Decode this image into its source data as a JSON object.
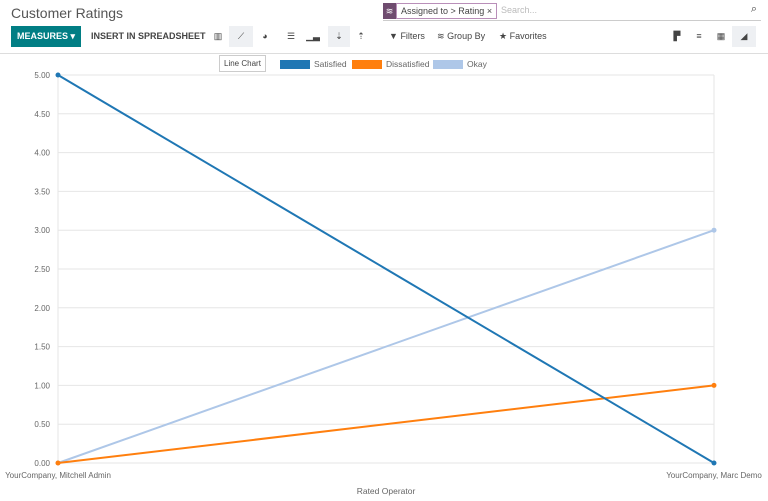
{
  "title": "Customer Ratings",
  "search": {
    "facet": "Assigned to > Rating",
    "facet_icon": "layers-icon",
    "placeholder": "Search..."
  },
  "toolbar": {
    "measures": "MEASURES",
    "insert": "INSERT IN SPREADSHEET",
    "filters": "Filters",
    "group_by": "Group By",
    "favorites": "Favorites",
    "tooltip": "Line Chart"
  },
  "chart_data": {
    "type": "line",
    "categories": [
      "YourCompany, Mitchell Admin",
      "YourCompany, Marc Demo"
    ],
    "series": [
      {
        "name": "Satisfied",
        "values": [
          5,
          0
        ],
        "color": "#1f77b4"
      },
      {
        "name": "Dissatisfied",
        "values": [
          0,
          1
        ],
        "color": "#ff7f0e"
      },
      {
        "name": "Okay",
        "values": [
          0,
          3
        ],
        "color": "#aec7e8"
      }
    ],
    "xlabel": "Rated Operator",
    "ylabel": "",
    "ylim": [
      0,
      5
    ],
    "yticks": [
      "0.00",
      "0.50",
      "1.00",
      "1.50",
      "2.00",
      "2.50",
      "3.00",
      "3.50",
      "4.00",
      "4.50",
      "5.00"
    ],
    "grid": true,
    "legend": "top"
  }
}
